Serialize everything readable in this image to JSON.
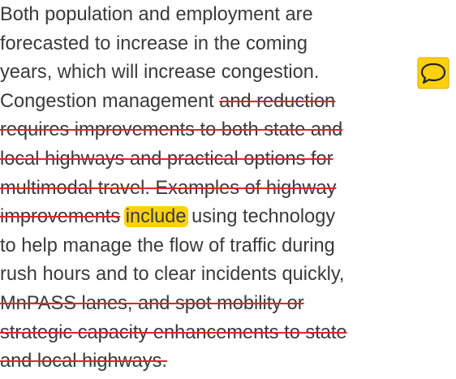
{
  "lines": [
    [
      {
        "text": "Both population and employment are"
      }
    ],
    [
      {
        "text": "forecasted to increase in the coming"
      }
    ],
    [
      {
        "text": "years, which will increase congestion."
      }
    ],
    [
      {
        "text": "Congestion management "
      },
      {
        "text": "and reduction",
        "style": "strike"
      }
    ],
    [
      {
        "text": "requires improvements to both state and",
        "style": "strike"
      }
    ],
    [
      {
        "text": "local highways and practical options for",
        "style": "strike"
      }
    ],
    [
      {
        "text": "multimodal travel. Examples of highway",
        "style": "strike"
      }
    ],
    [
      {
        "text": "improvements",
        "style": "strike"
      },
      {
        "text": " "
      },
      {
        "text": "include",
        "style": "highlight"
      },
      {
        "text": " using technology"
      }
    ],
    [
      {
        "text": "to help manage the flow of traffic during"
      }
    ],
    [
      {
        "text": "rush hours and to clear incidents quickly,"
      }
    ],
    [
      {
        "text": "MnPASS lanes, and spot mobility or",
        "style": "strike"
      }
    ],
    [
      {
        "text": "strategic capacity enhancements to state",
        "style": "strike"
      }
    ],
    [
      {
        "text": "and local highways.",
        "style": "strike"
      }
    ]
  ]
}
